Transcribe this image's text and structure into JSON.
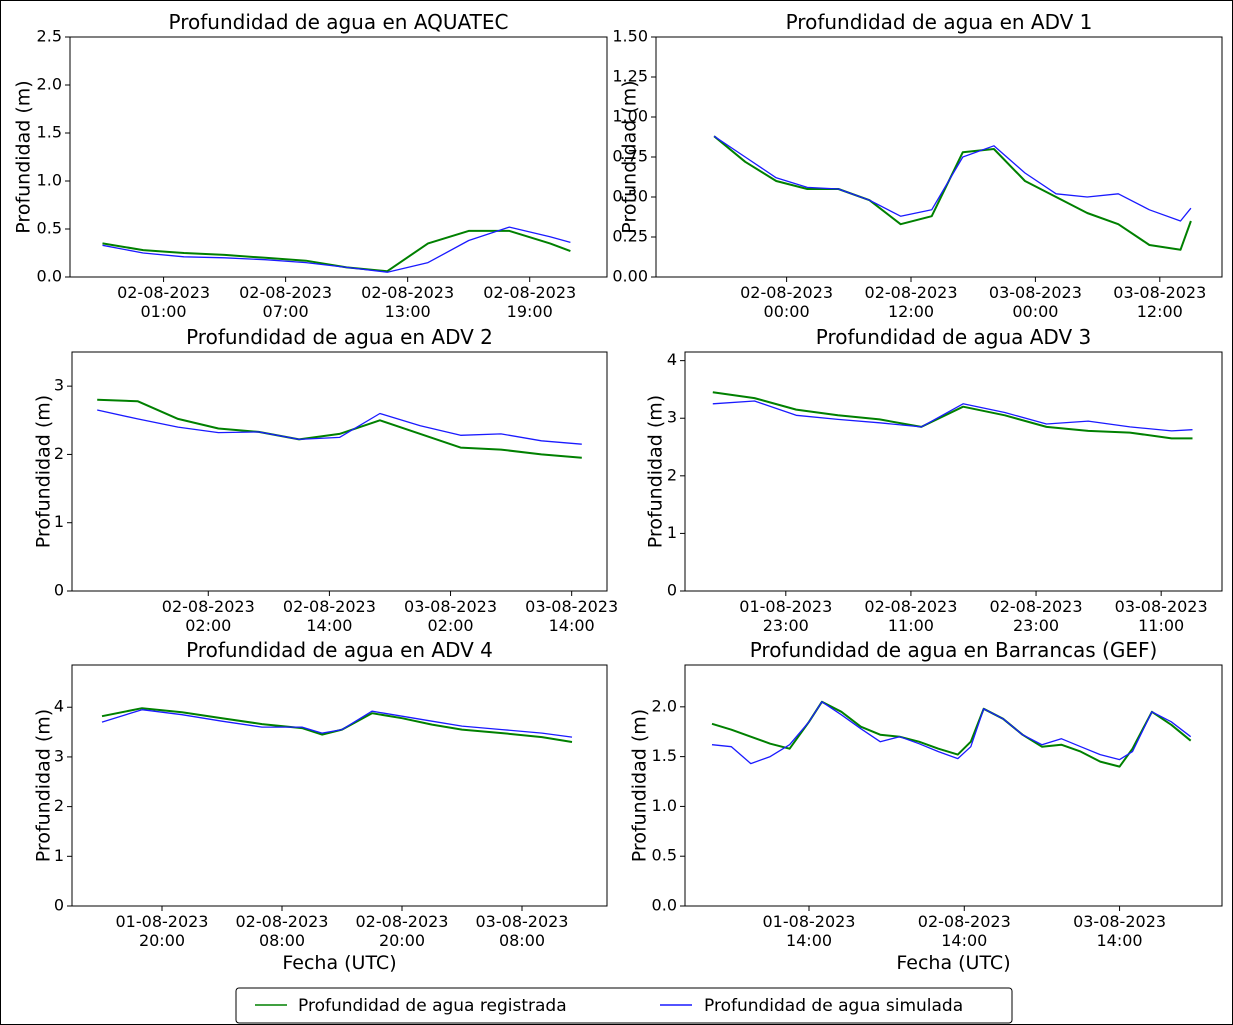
{
  "chart_data": [
    {
      "type": "line",
      "title": "Profundidad de agua en AQUATEC",
      "ylabel": "Profundidad (m)",
      "x": [
        "01-08-2023 22:00",
        "02-08-2023 00:00",
        "02-08-2023 02:00",
        "02-08-2023 04:00",
        "02-08-2023 06:00",
        "02-08-2023 08:00",
        "02-08-2023 10:00",
        "02-08-2023 12:00",
        "02-08-2023 14:00",
        "02-08-2023 16:00",
        "02-08-2023 18:00",
        "02-08-2023 20:00",
        "02-08-2023 21:00"
      ],
      "series": [
        {
          "name": "Profundidad de agua registrada",
          "color": "#008000",
          "values": [
            0.35,
            0.28,
            0.25,
            0.23,
            0.2,
            0.17,
            0.1,
            0.06,
            0.35,
            0.48,
            0.48,
            0.35,
            0.27
          ]
        },
        {
          "name": "Profundidad de agua simulada",
          "color": "#1a1aff",
          "values": [
            0.33,
            0.25,
            0.21,
            0.2,
            0.18,
            0.15,
            0.1,
            0.05,
            0.15,
            0.38,
            0.52,
            0.42,
            0.36
          ]
        }
      ],
      "xlim": [
        "01-08-2023 20:24",
        "02-08-2023 22:48"
      ],
      "xticks": [
        "02-08-2023 01:00",
        "02-08-2023 07:00",
        "02-08-2023 13:00",
        "02-08-2023 19:00"
      ],
      "ylim": [
        0,
        2.5
      ],
      "yticks": [
        {
          "value": 0,
          "label": "0.0"
        },
        0.5,
        {
          "value": 1,
          "label": "1.0"
        },
        1.5,
        {
          "value": 2,
          "label": "2.0"
        },
        2.5
      ]
    },
    {
      "type": "line",
      "title": "Profundidad de agua en ADV 1",
      "ylabel": "Profundidad (m)",
      "x": [
        "01-08-2023 17:00",
        "01-08-2023 20:00",
        "01-08-2023 23:00",
        "02-08-2023 02:00",
        "02-08-2023 05:00",
        "02-08-2023 08:00",
        "02-08-2023 11:00",
        "02-08-2023 14:00",
        "02-08-2023 17:00",
        "02-08-2023 20:00",
        "02-08-2023 23:00",
        "03-08-2023 02:00",
        "03-08-2023 05:00",
        "03-08-2023 08:00",
        "03-08-2023 11:00",
        "03-08-2023 14:00",
        "03-08-2023 15:00"
      ],
      "series": [
        {
          "name": "Profundidad de agua registrada",
          "color": "#008000",
          "values": [
            0.88,
            0.72,
            0.6,
            0.55,
            0.55,
            0.48,
            0.33,
            0.38,
            0.78,
            0.8,
            0.6,
            0.5,
            0.4,
            0.33,
            0.2,
            0.17,
            0.35
          ]
        },
        {
          "name": "Profundidad de agua simulada",
          "color": "#1a1aff",
          "values": [
            0.88,
            0.75,
            0.62,
            0.56,
            0.55,
            0.48,
            0.38,
            0.42,
            0.75,
            0.82,
            0.65,
            0.52,
            0.5,
            0.52,
            0.42,
            0.35,
            0.43
          ]
        }
      ],
      "xlim": [
        "01-08-2023 11:24",
        "03-08-2023 18:00"
      ],
      "xticks": [
        "02-08-2023 00:00",
        "02-08-2023 12:00",
        "03-08-2023 00:00",
        "03-08-2023 12:00"
      ],
      "ylim": [
        0,
        1.5
      ],
      "yticks": [
        {
          "value": 0,
          "label": "0.00"
        },
        {
          "value": 0.25,
          "label": "0.25"
        },
        {
          "value": 0.5,
          "label": "0.50"
        },
        {
          "value": 0.75,
          "label": "0.75"
        },
        {
          "value": 1,
          "label": "1.00"
        },
        {
          "value": 1.25,
          "label": "1.25"
        },
        {
          "value": 1.5,
          "label": "1.50"
        }
      ]
    },
    {
      "type": "line",
      "title": "Profundidad de agua en ADV 2",
      "ylabel": "Profundidad (m)",
      "x": [
        "01-08-2023 15:00",
        "01-08-2023 19:00",
        "01-08-2023 23:00",
        "02-08-2023 03:00",
        "02-08-2023 07:00",
        "02-08-2023 11:00",
        "02-08-2023 15:00",
        "02-08-2023 19:00",
        "02-08-2023 23:00",
        "03-08-2023 03:00",
        "03-08-2023 07:00",
        "03-08-2023 11:00",
        "03-08-2023 15:00"
      ],
      "series": [
        {
          "name": "Profundidad de agua registrada",
          "color": "#008000",
          "values": [
            2.8,
            2.78,
            2.52,
            2.38,
            2.33,
            2.22,
            2.3,
            2.5,
            2.3,
            2.1,
            2.07,
            2.0,
            1.95
          ]
        },
        {
          "name": "Profundidad de agua simulada",
          "color": "#1a1aff",
          "values": [
            2.65,
            2.52,
            2.4,
            2.32,
            2.33,
            2.22,
            2.25,
            2.6,
            2.42,
            2.28,
            2.3,
            2.2,
            2.15
          ]
        }
      ],
      "xlim": [
        "01-08-2023 12:30",
        "03-08-2023 17:30"
      ],
      "xticks": [
        "02-08-2023 02:00",
        "02-08-2023 14:00",
        "03-08-2023 02:00",
        "03-08-2023 14:00"
      ],
      "ylim": [
        0,
        3.5
      ],
      "yticks": [
        0,
        1,
        2,
        3
      ]
    },
    {
      "type": "line",
      "title": "Profundidad de agua ADV 3",
      "ylabel": "Profundidad (m)",
      "x": [
        "01-08-2023 16:00",
        "01-08-2023 20:00",
        "02-08-2023 00:00",
        "02-08-2023 04:00",
        "02-08-2023 08:00",
        "02-08-2023 12:00",
        "02-08-2023 16:00",
        "02-08-2023 20:00",
        "03-08-2023 00:00",
        "03-08-2023 04:00",
        "03-08-2023 08:00",
        "03-08-2023 12:00",
        "03-08-2023 14:00"
      ],
      "series": [
        {
          "name": "Profundidad de agua registrada",
          "color": "#008000",
          "values": [
            3.45,
            3.35,
            3.15,
            3.05,
            2.98,
            2.85,
            3.2,
            3.05,
            2.85,
            2.78,
            2.75,
            2.65,
            2.65
          ]
        },
        {
          "name": "Profundidad de agua simulada",
          "color": "#1a1aff",
          "values": [
            3.25,
            3.3,
            3.05,
            2.98,
            2.92,
            2.85,
            3.25,
            3.1,
            2.9,
            2.95,
            2.85,
            2.78,
            2.8
          ]
        }
      ],
      "xlim": [
        "01-08-2023 13:20",
        "03-08-2023 16:50"
      ],
      "xticks": [
        "01-08-2023 23:00",
        "02-08-2023 11:00",
        "02-08-2023 23:00",
        "03-08-2023 11:00"
      ],
      "ylim": [
        0,
        4.15
      ],
      "yticks": [
        0,
        1,
        2,
        3,
        4
      ]
    },
    {
      "type": "line",
      "title": "Profundidad de agua en ADV 4",
      "ylabel": "Profundidad (m)",
      "xlabel": "Fecha (UTC)",
      "x": [
        "01-08-2023 14:00",
        "01-08-2023 18:00",
        "01-08-2023 22:00",
        "02-08-2023 02:00",
        "02-08-2023 06:00",
        "02-08-2023 10:00",
        "02-08-2023 12:00",
        "02-08-2023 14:00",
        "02-08-2023 17:00",
        "02-08-2023 20:00",
        "02-08-2023 23:00",
        "03-08-2023 02:00",
        "03-08-2023 06:00",
        "03-08-2023 10:00",
        "03-08-2023 13:00"
      ],
      "series": [
        {
          "name": "Profundidad de agua registrada",
          "color": "#008000",
          "values": [
            3.82,
            3.98,
            3.9,
            3.78,
            3.66,
            3.58,
            3.45,
            3.55,
            3.88,
            3.78,
            3.65,
            3.55,
            3.48,
            3.4,
            3.3
          ]
        },
        {
          "name": "Profundidad de agua simulada",
          "color": "#1a1aff",
          "values": [
            3.7,
            3.95,
            3.85,
            3.72,
            3.6,
            3.6,
            3.48,
            3.55,
            3.92,
            3.82,
            3.72,
            3.62,
            3.55,
            3.48,
            3.4
          ]
        }
      ],
      "xlim": [
        "01-08-2023 11:00",
        "03-08-2023 16:30"
      ],
      "xticks": [
        "01-08-2023 20:00",
        "02-08-2023 08:00",
        "02-08-2023 20:00",
        "03-08-2023 08:00"
      ],
      "ylim": [
        0,
        4.85
      ],
      "yticks": [
        0,
        1,
        2,
        3,
        4
      ]
    },
    {
      "type": "line",
      "title": "Profundidad de agua en Barrancas (GEF)",
      "ylabel": "Profundidad (m)",
      "xlabel": "Fecha (UTC)",
      "x": [
        "31-07-2023 23:00",
        "01-08-2023 02:00",
        "01-08-2023 05:00",
        "01-08-2023 08:00",
        "01-08-2023 11:00",
        "01-08-2023 14:00",
        "01-08-2023 16:00",
        "01-08-2023 19:00",
        "01-08-2023 22:00",
        "02-08-2023 01:00",
        "02-08-2023 04:00",
        "02-08-2023 07:00",
        "02-08-2023 10:00",
        "02-08-2023 13:00",
        "02-08-2023 15:00",
        "02-08-2023 17:00",
        "02-08-2023 20:00",
        "02-08-2023 23:00",
        "03-08-2023 02:00",
        "03-08-2023 05:00",
        "03-08-2023 08:00",
        "03-08-2023 11:00",
        "03-08-2023 14:00",
        "03-08-2023 16:00",
        "03-08-2023 19:00",
        "03-08-2023 22:00",
        "04-08-2023 01:00"
      ],
      "series": [
        {
          "name": "Profundidad de agua registrada",
          "color": "#008000",
          "values": [
            1.83,
            1.77,
            1.7,
            1.63,
            1.58,
            1.85,
            2.05,
            1.95,
            1.8,
            1.72,
            1.7,
            1.65,
            1.58,
            1.52,
            1.65,
            1.98,
            1.88,
            1.72,
            1.6,
            1.62,
            1.55,
            1.45,
            1.4,
            1.58,
            1.95,
            1.82,
            1.66
          ]
        },
        {
          "name": "Profundidad de agua simulada",
          "color": "#1a1aff",
          "values": [
            1.62,
            1.6,
            1.43,
            1.5,
            1.62,
            1.85,
            2.05,
            1.92,
            1.78,
            1.65,
            1.7,
            1.63,
            1.55,
            1.48,
            1.6,
            1.98,
            1.88,
            1.72,
            1.62,
            1.68,
            1.6,
            1.52,
            1.47,
            1.55,
            1.95,
            1.85,
            1.7
          ]
        }
      ],
      "xlim": [
        "31-07-2023 18:50",
        "04-08-2023 05:50"
      ],
      "xticks": [
        "01-08-2023 14:00",
        "02-08-2023 14:00",
        "03-08-2023 14:00"
      ],
      "ylim": [
        0,
        2.42
      ],
      "yticks": [
        {
          "value": 0,
          "label": "0.0"
        },
        0.5,
        {
          "value": 1,
          "label": "1.0"
        },
        1.5,
        {
          "value": 2,
          "label": "2.0"
        }
      ]
    }
  ]
}
